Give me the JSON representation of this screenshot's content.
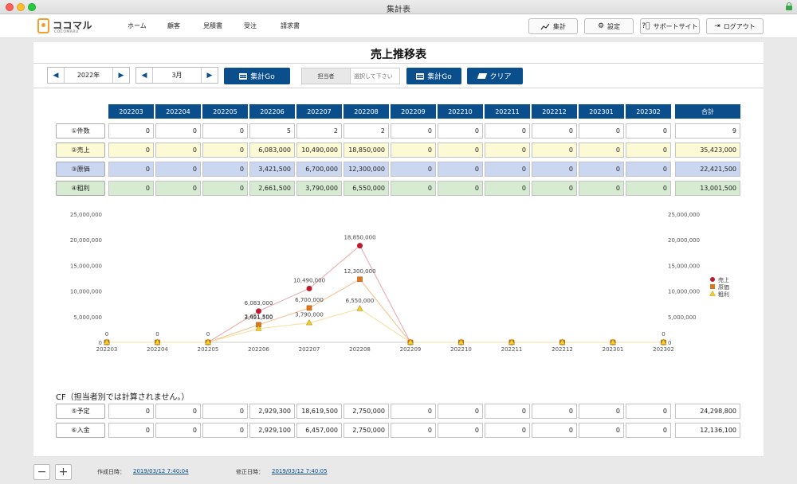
{
  "window": {
    "title": "集計表"
  },
  "logo": {
    "text": "ココマル",
    "sub": "COCOMARU"
  },
  "nav": [
    "ホーム",
    "顧客",
    "見積書",
    "受注",
    "請求書"
  ],
  "header_buttons": {
    "shukei": "集計",
    "settei": "設定",
    "support": "サポートサイト",
    "logout": "ログアウト"
  },
  "page": {
    "title": "売上推移表"
  },
  "filters": {
    "year": "2022年",
    "month": "3月",
    "go_label": "集計Go",
    "tantou_label": "担当者",
    "tantou_placeholder": "選択して下さい",
    "clear_label": "クリア"
  },
  "table": {
    "months": [
      "202203",
      "202204",
      "202205",
      "202206",
      "202207",
      "202208",
      "202209",
      "202210",
      "202211",
      "202212",
      "202301",
      "202302"
    ],
    "total_header": "合計",
    "rows": [
      {
        "label": "①件数",
        "values": [
          "0",
          "0",
          "0",
          "5",
          "2",
          "2",
          "0",
          "0",
          "0",
          "0",
          "0",
          "0"
        ],
        "total": "9"
      },
      {
        "label": "②売上",
        "values": [
          "0",
          "0",
          "0",
          "6,083,000",
          "10,490,000",
          "18,850,000",
          "0",
          "0",
          "0",
          "0",
          "0",
          "0"
        ],
        "total": "35,423,000"
      },
      {
        "label": "③原価",
        "values": [
          "0",
          "0",
          "0",
          "3,421,500",
          "6,700,000",
          "12,300,000",
          "0",
          "0",
          "0",
          "0",
          "0",
          "0"
        ],
        "total": "22,421,500"
      },
      {
        "label": "④粗利",
        "values": [
          "0",
          "0",
          "0",
          "2,661,500",
          "3,790,000",
          "6,550,000",
          "0",
          "0",
          "0",
          "0",
          "0",
          "0"
        ],
        "total": "13,001,500"
      }
    ]
  },
  "cf": {
    "title": "CF（担当者別では計算されません。）",
    "rows": [
      {
        "label": "⑤予定",
        "values": [
          "0",
          "0",
          "0",
          "2,929,300",
          "18,619,500",
          "2,750,000",
          "0",
          "0",
          "0",
          "0",
          "0",
          "0"
        ],
        "total": "24,298,800"
      },
      {
        "label": "⑥入金",
        "values": [
          "0",
          "0",
          "0",
          "2,929,100",
          "6,457,000",
          "2,750,000",
          "0",
          "0",
          "0",
          "0",
          "0",
          "0"
        ],
        "total": "12,136,100"
      }
    ]
  },
  "chart_data": {
    "type": "line",
    "categories": [
      "202203",
      "202204",
      "202205",
      "202206",
      "202207",
      "202208",
      "202209",
      "202210",
      "202211",
      "202212",
      "202301",
      "202302"
    ],
    "ylim": [
      0,
      25000000
    ],
    "yticks": [
      "0",
      "5,000,000",
      "10,000,000",
      "15,000,000",
      "20,000,000",
      "25,000,000"
    ],
    "grid": false,
    "legend_position": "right",
    "series": [
      {
        "name": "売上",
        "color": "#c0182c",
        "marker": "circle",
        "values": [
          0,
          0,
          0,
          6083000,
          10490000,
          18850000,
          0,
          0,
          0,
          0,
          0,
          0
        ],
        "labels": [
          "0",
          "0",
          "0",
          "6,083,000",
          "10,490,000",
          "18,850,000",
          "",
          "",
          "",
          "",
          "",
          "0"
        ]
      },
      {
        "name": "原価",
        "color": "#e0761c",
        "marker": "square",
        "values": [
          0,
          0,
          0,
          3421500,
          6700000,
          12300000,
          0,
          0,
          0,
          0,
          0,
          0
        ],
        "labels": [
          "",
          "",
          "",
          "3,421,500",
          "6,700,000",
          "12,300,000",
          "",
          "",
          "",
          "",
          "",
          ""
        ]
      },
      {
        "name": "粗利",
        "color": "#f2cf2a",
        "marker": "triangle",
        "values": [
          0,
          0,
          0,
          2661500,
          3790000,
          6550000,
          0,
          0,
          0,
          0,
          0,
          0
        ],
        "labels": [
          "",
          "",
          "",
          "2,661,500",
          "3,790,000",
          "6,550,000",
          "",
          "",
          "",
          "",
          "",
          ""
        ]
      }
    ]
  },
  "footer": {
    "created_label": "作成日時：",
    "created_value": "2019/03/12 7:40:04",
    "modified_label": "修正日時：",
    "modified_value": "2019/03/12 7:40:05"
  }
}
